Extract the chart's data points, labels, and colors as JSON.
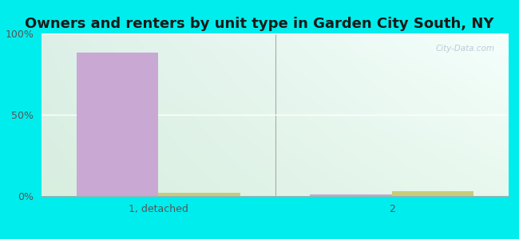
{
  "title": "Owners and renters by unit type in Garden City South, NY",
  "categories": [
    "1, detached",
    "2"
  ],
  "owner_values": [
    88,
    1
  ],
  "renter_values": [
    2,
    3
  ],
  "owner_color": "#c9a8d4",
  "renter_color": "#c8cc7a",
  "bar_width": 0.35,
  "ylim": [
    0,
    100
  ],
  "yticks": [
    0,
    50,
    100
  ],
  "ytick_labels": [
    "0%",
    "50%",
    "100%"
  ],
  "background_color": "#00eded",
  "title_fontsize": 13,
  "title_color": "#1a1a1a",
  "watermark": "City-Data.com",
  "grad_top_left": "#e8f5e5",
  "grad_bottom_right": "#f5fffa",
  "grid_color": "#ffffff",
  "axis_color": "#aaaaaa"
}
